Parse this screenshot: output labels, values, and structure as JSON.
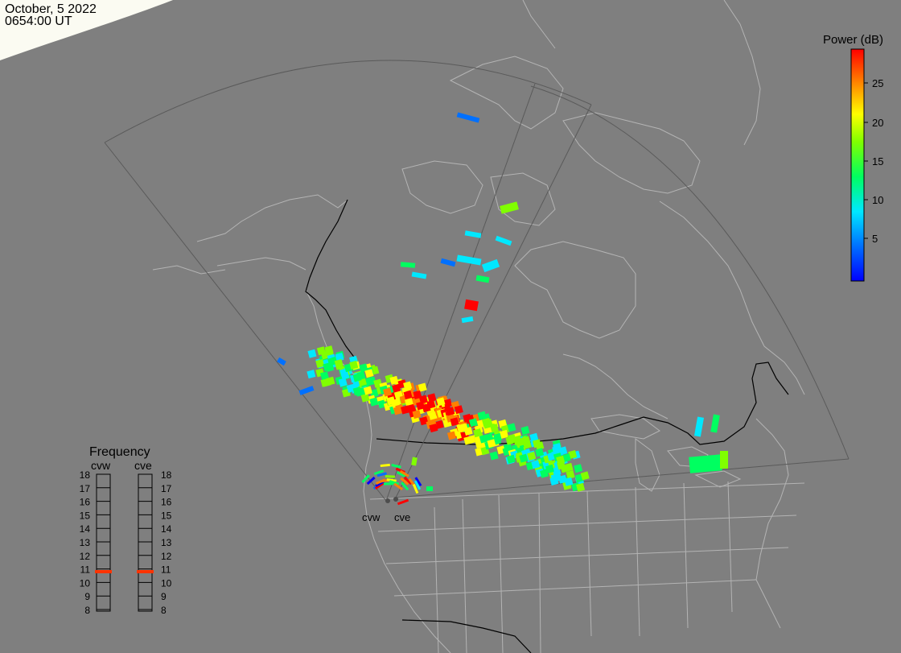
{
  "header": {
    "date": "October, 5 2022",
    "time": "0654:00 UT"
  },
  "colorbar": {
    "title": "Power (dB)",
    "ticks": [
      "25",
      "20",
      "15",
      "10",
      "5"
    ],
    "colors": [
      "#0000ff",
      "#0080ff",
      "#00e0ff",
      "#00ff80",
      "#80ff00",
      "#ffff00",
      "#ff8000",
      "#ff0000"
    ]
  },
  "frequency_panel": {
    "title": "Frequency",
    "left_label": "cvw",
    "right_label": "cve",
    "levels": [
      "18",
      "17",
      "16",
      "15",
      "14",
      "13",
      "12",
      "11",
      "10",
      "9",
      "8"
    ],
    "cvw_current_mhz": 10.8,
    "cve_current_mhz": 10.8,
    "marker_color": "#ff3300"
  },
  "radars": {
    "west_label": "cvw",
    "east_label": "cve"
  },
  "colors": {
    "background": "#7f7f7f",
    "coastline": "#b4b4b4",
    "border": "#000000",
    "fov": "#5a5a5a"
  }
}
